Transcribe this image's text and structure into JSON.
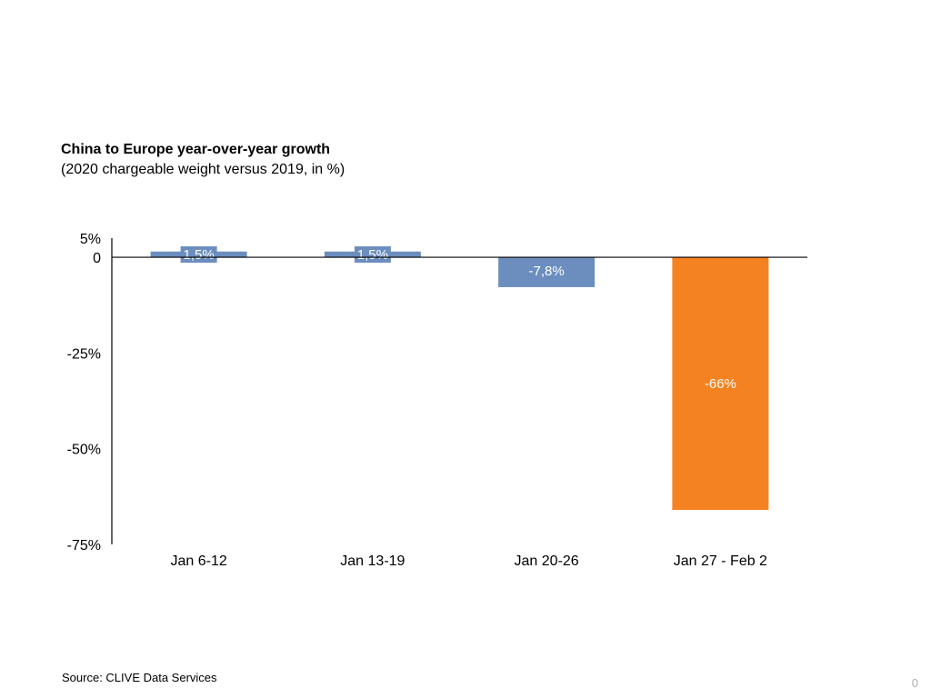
{
  "slide": {
    "title": "China to Europe year-over-year growth",
    "subtitle": "(2020 chargeable weight versus 2019, in %)",
    "source": "Source: CLIVE Data Services",
    "page_number": "0"
  },
  "colors": {
    "bar_default": "#6c8ebf",
    "bar_highlight": "#f58220",
    "axis": "#000000",
    "label_text": "#ffffff"
  },
  "chart_data": {
    "type": "bar",
    "categories": [
      "Jan 6-12",
      "Jan 13-19",
      "Jan 20-26",
      "Jan 27 - Feb 2"
    ],
    "values": [
      1.5,
      1.5,
      -7.8,
      -66
    ],
    "value_labels": [
      "1,5%",
      "1,5%",
      "-7,8%",
      "-66%"
    ],
    "highlight": [
      false,
      false,
      false,
      true
    ],
    "ylim": [
      -75,
      5
    ],
    "ytick_values": [
      5,
      0,
      -25,
      -50,
      -75
    ],
    "ytick_labels": [
      "5%",
      "0",
      "-25%",
      "-50%",
      "-75%"
    ],
    "title": "China to Europe year-over-year growth",
    "xlabel": "",
    "ylabel": "",
    "grid": false,
    "legend": "none"
  }
}
